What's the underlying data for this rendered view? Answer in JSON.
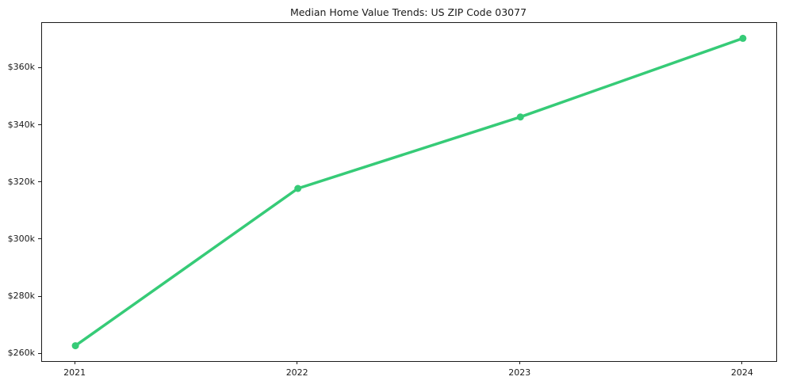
{
  "chart_data": {
    "type": "line",
    "title": "Median Home Value Trends: US ZIP Code 03077",
    "x": [
      2021,
      2022,
      2023,
      2024
    ],
    "x_tick_labels": [
      "2021",
      "2022",
      "2023",
      "2024"
    ],
    "series": [
      {
        "name": "Median Home Value",
        "values": [
          263000,
          318000,
          343000,
          370500
        ]
      }
    ],
    "y_ticks": [
      260000,
      280000,
      300000,
      320000,
      340000,
      360000
    ],
    "y_tick_labels": [
      "$260k",
      "$280k",
      "$300k",
      "$320k",
      "$340k",
      "$360k"
    ],
    "xlim": [
      2020.85,
      2024.15
    ],
    "ylim": [
      257625,
      375875
    ],
    "grid": false,
    "legend": "none",
    "line_color": "#36cb77",
    "marker": "circle",
    "marker_color": "#36cb77",
    "axis_color": "#1a1a1a",
    "text_color": "#1a1a1a",
    "background_color": "#ffffff"
  }
}
